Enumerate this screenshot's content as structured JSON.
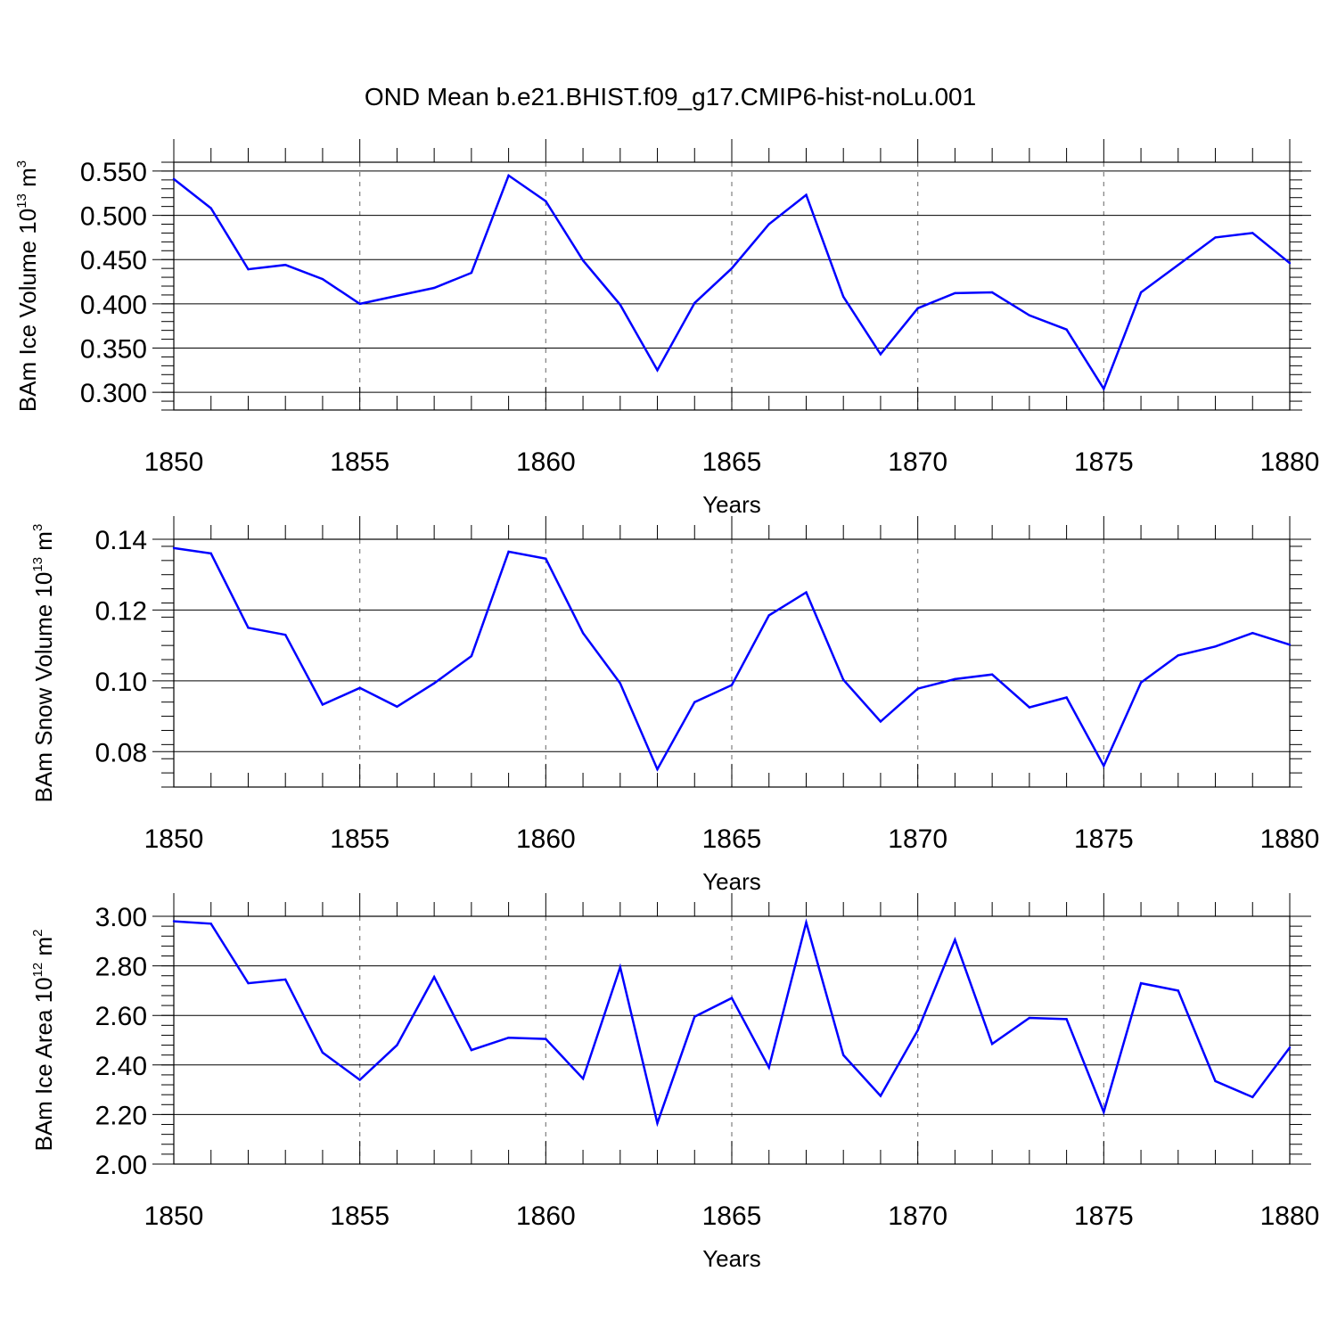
{
  "title": "OND Mean b.e21.BHIST.f09_g17.CMIP6-hist-noLu.001",
  "colors": {
    "series": "#0000ff",
    "axes": "#000000",
    "grid": "#7f7f7f"
  },
  "chart_data": [
    {
      "type": "line",
      "ylabel": {
        "base": "BAm Ice Volume 10",
        "exponent": "13",
        "unit": " m",
        "unit_exponent": "3"
      },
      "xlabel": "Years",
      "xlim": [
        1850,
        1880
      ],
      "xticks": [
        "1850",
        "1855",
        "1860",
        "1865",
        "1870",
        "1875",
        "1880"
      ],
      "ylim": [
        0.28,
        0.56
      ],
      "yticks": [
        "0.300",
        "0.350",
        "0.400",
        "0.450",
        "0.500",
        "0.550"
      ],
      "ytick_values": [
        0.3,
        0.35,
        0.4,
        0.45,
        0.5,
        0.55
      ],
      "grid": "vertical dashed at major x ticks",
      "x": [
        1850,
        1851,
        1852,
        1853,
        1854,
        1855,
        1856,
        1857,
        1858,
        1859,
        1860,
        1861,
        1862,
        1863,
        1864,
        1865,
        1866,
        1867,
        1868,
        1869,
        1870,
        1871,
        1872,
        1873,
        1874,
        1875,
        1876,
        1877,
        1878,
        1879,
        1880
      ],
      "values": [
        0.541,
        0.508,
        0.439,
        0.444,
        0.428,
        0.4,
        0.409,
        0.418,
        0.435,
        0.545,
        0.516,
        0.449,
        0.399,
        0.325,
        0.401,
        0.44,
        0.49,
        0.523,
        0.408,
        0.343,
        0.395,
        0.412,
        0.413,
        0.387,
        0.371,
        0.304,
        0.413,
        0.444,
        0.475,
        0.48,
        0.446
      ]
    },
    {
      "type": "line",
      "ylabel": {
        "base": "BAm Snow Volume 10",
        "exponent": "13",
        "unit": " m",
        "unit_exponent": "3"
      },
      "xlabel": "Years",
      "xlim": [
        1850,
        1880
      ],
      "xticks": [
        "1850",
        "1855",
        "1860",
        "1865",
        "1870",
        "1875",
        "1880"
      ],
      "ylim": [
        0.07,
        0.14
      ],
      "yticks": [
        "0.08",
        "0.10",
        "0.12",
        "0.14"
      ],
      "ytick_values": [
        0.08,
        0.1,
        0.12,
        0.14
      ],
      "grid": "vertical dashed at major x ticks",
      "x": [
        1850,
        1851,
        1852,
        1853,
        1854,
        1855,
        1856,
        1857,
        1858,
        1859,
        1860,
        1861,
        1862,
        1863,
        1864,
        1865,
        1866,
        1867,
        1868,
        1869,
        1870,
        1871,
        1872,
        1873,
        1874,
        1875,
        1876,
        1877,
        1878,
        1879,
        1880
      ],
      "values": [
        0.1375,
        0.136,
        0.115,
        0.113,
        0.0933,
        0.098,
        0.0927,
        0.0993,
        0.107,
        0.1365,
        0.1345,
        0.1135,
        0.0993,
        0.075,
        0.094,
        0.0988,
        0.1185,
        0.125,
        0.1003,
        0.0885,
        0.0978,
        0.1005,
        0.1018,
        0.0925,
        0.0953,
        0.076,
        0.0995,
        0.1072,
        0.1097,
        0.1135,
        0.1102
      ]
    },
    {
      "type": "line",
      "ylabel": {
        "base": "BAm Ice Area 10",
        "exponent": "12",
        "unit": " m",
        "unit_exponent": "2"
      },
      "xlabel": "Years",
      "xlim": [
        1850,
        1880
      ],
      "xticks": [
        "1850",
        "1855",
        "1860",
        "1865",
        "1870",
        "1875",
        "1880"
      ],
      "ylim": [
        2.0,
        3.0
      ],
      "yticks": [
        "2.00",
        "2.20",
        "2.40",
        "2.60",
        "2.80",
        "3.00"
      ],
      "ytick_values": [
        2.0,
        2.2,
        2.4,
        2.6,
        2.8,
        3.0
      ],
      "grid": "vertical dashed at major x ticks",
      "x": [
        1850,
        1851,
        1852,
        1853,
        1854,
        1855,
        1856,
        1857,
        1858,
        1859,
        1860,
        1861,
        1862,
        1863,
        1864,
        1865,
        1866,
        1867,
        1868,
        1869,
        1870,
        1871,
        1872,
        1873,
        1874,
        1875,
        1876,
        1877,
        1878,
        1879,
        1880
      ],
      "values": [
        2.98,
        2.97,
        2.73,
        2.745,
        2.45,
        2.34,
        2.48,
        2.755,
        2.46,
        2.51,
        2.505,
        2.345,
        2.795,
        2.165,
        2.595,
        2.67,
        2.39,
        2.975,
        2.44,
        2.275,
        2.54,
        2.905,
        2.485,
        2.59,
        2.585,
        2.21,
        2.73,
        2.7,
        2.335,
        2.27,
        2.47
      ]
    }
  ]
}
